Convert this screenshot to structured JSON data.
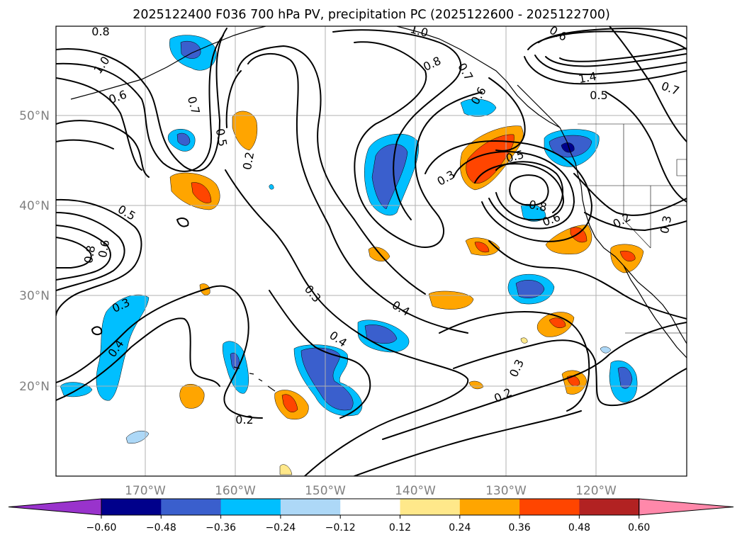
{
  "title": "2025122400 F036 700 hPa PV, precipitation PC (2025122600 - 2025122700)",
  "lon_labels": [
    "170°W",
    "160°W",
    "150°W",
    "140°W",
    "130°W",
    "120°W"
  ],
  "lat_labels": [
    "50°N",
    "40°N",
    "30°N",
    "20°N"
  ],
  "colorbar": {
    "ticks": [
      "−0.60",
      "−0.48",
      "−0.36",
      "−0.24",
      "−0.12",
      "0.12",
      "0.24",
      "0.36",
      "0.48",
      "0.60"
    ],
    "colors": [
      "#9933cc",
      "#00008b",
      "#3a5fcd",
      "#00bfff",
      "#add8f7",
      "#ffffff",
      "#ffe88a",
      "#ffa500",
      "#ff4500",
      "#b22222",
      "#ff88aa"
    ]
  },
  "contour_labels": [
    "0.8",
    "1.0",
    "0.6",
    "0.7",
    "0.5",
    "0.2",
    "0.5",
    "0.6",
    "0.8",
    "0.3",
    "0.4",
    "0.3",
    "0.4",
    "0.2",
    "1.0",
    "0.8",
    "0.7",
    "0.6",
    "0.3",
    "0.5",
    "0.8",
    "0.6",
    "0.2",
    "0.3",
    "0.2",
    "0.3",
    "0.4",
    "0.7",
    "0.5",
    "1.4",
    "0.6"
  ]
}
